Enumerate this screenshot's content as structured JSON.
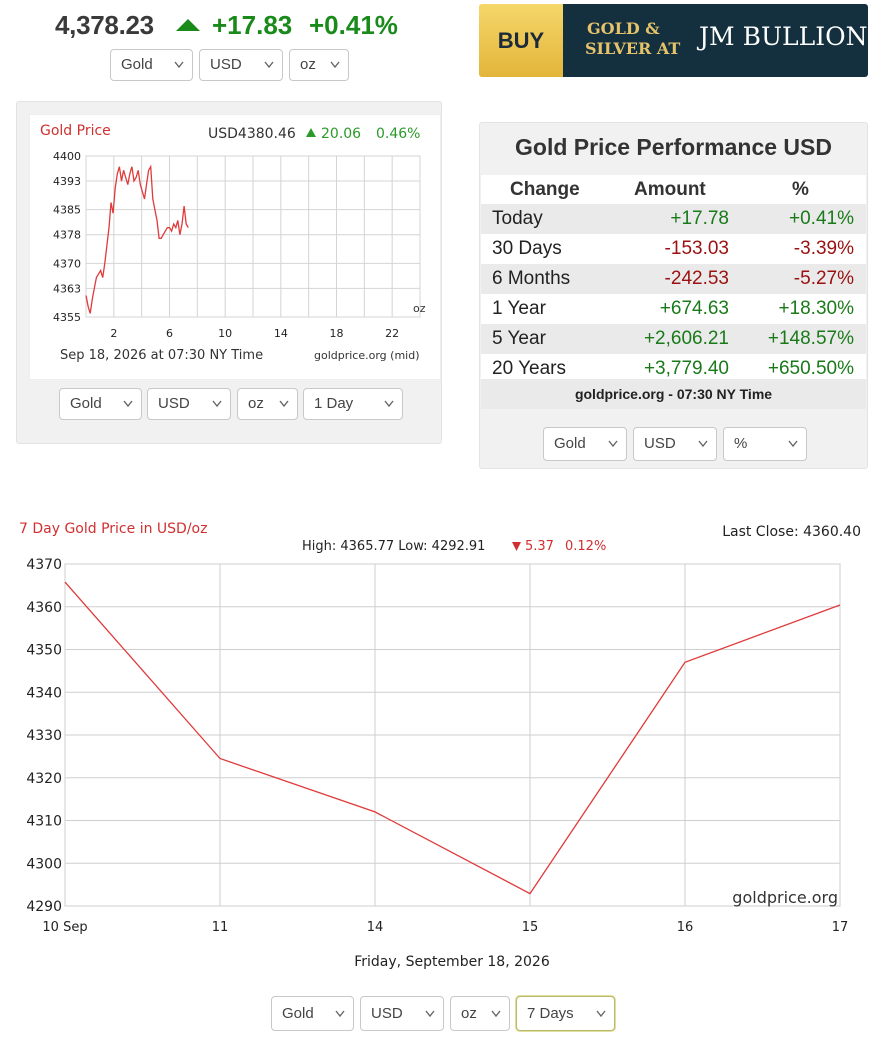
{
  "header": {
    "price": "4,378.23",
    "change": "+17.83",
    "change_pct": "+0.41%",
    "trend_icon": "triangle-up-icon",
    "selects": [
      "Gold",
      "USD",
      "oz"
    ]
  },
  "banner": {
    "buy": "BUY",
    "line1": "GOLD &",
    "line2": "SILVER AT",
    "brand": "JM BULLION"
  },
  "small_chart": {
    "title": "Gold Price",
    "price_label": "USD4380.46",
    "change_label": "20.06",
    "pct_label": "0.46%",
    "unit": "oz",
    "date_label": "Sep 18, 2026 at 07:30 NY Time",
    "source_label": "goldprice.org (mid)",
    "selects": [
      "Gold",
      "USD",
      "oz",
      "1 Day"
    ]
  },
  "performance": {
    "title": "Gold Price Performance USD",
    "headers": [
      "Change",
      "Amount",
      "%"
    ],
    "rows": [
      {
        "label": "Today",
        "amount": "+17.78",
        "pct": "+0.41%"
      },
      {
        "label": "30 Days",
        "amount": "-153.03",
        "pct": "-3.39%"
      },
      {
        "label": "6 Months",
        "amount": "-242.53",
        "pct": "-5.27%"
      },
      {
        "label": "1 Year",
        "amount": "+674.63",
        "pct": "+18.30%"
      },
      {
        "label": "5 Year",
        "amount": "+2,606.21",
        "pct": "+148.57%"
      },
      {
        "label": "20 Years",
        "amount": "+3,779.40",
        "pct": "+650.50%"
      }
    ],
    "footer": "goldprice.org - 07:30 NY Time",
    "selects": [
      "Gold",
      "USD",
      "%"
    ]
  },
  "big_chart": {
    "title": "7 Day Gold Price in USD/oz",
    "last_close": "Last Close: 4360.40",
    "high_low": "High: 4365.77 Low: 4292.91",
    "change": "5.37",
    "change_pct": "0.12%",
    "watermark": "goldprice.org",
    "date_label": "Friday, September 18, 2026",
    "selects": [
      "Gold",
      "USD",
      "oz",
      "7 Days"
    ]
  },
  "colors": {
    "up": "#1a8a1a",
    "down": "#9b1010",
    "chart_line": "#e03a3a",
    "banner_gold": "#e6c36a",
    "banner_dark": "#14303f"
  },
  "chart_data": [
    {
      "type": "line",
      "title": "Gold Price",
      "ylim": [
        4355,
        4400
      ],
      "yticks": [
        4355,
        4363,
        4370,
        4378,
        4385,
        4393,
        4400
      ],
      "xlim": [
        0,
        24
      ],
      "xticks": [
        2,
        6,
        10,
        14,
        18,
        22
      ],
      "grid": true,
      "series": [
        {
          "x": [
            0.0,
            0.15,
            0.3,
            0.45,
            0.6,
            0.75,
            0.9,
            1.05,
            1.2,
            1.35,
            1.5,
            1.65,
            1.8,
            1.95,
            2.1,
            2.25,
            2.4,
            2.55,
            2.7,
            2.85,
            3.0,
            3.15,
            3.3,
            3.45,
            3.6,
            3.75,
            3.9,
            4.05,
            4.2,
            4.35,
            4.5,
            4.65,
            4.8,
            4.95,
            5.1,
            5.25,
            5.4,
            5.55,
            5.7,
            5.85,
            6.0,
            6.15,
            6.3,
            6.45,
            6.6,
            6.75,
            6.9,
            7.05,
            7.2,
            7.35
          ],
          "y": [
            4361,
            4358,
            4356,
            4360,
            4363,
            4366,
            4367,
            4368,
            4366,
            4370,
            4375,
            4380,
            4387,
            4384,
            4391,
            4395,
            4397,
            4393,
            4396,
            4394,
            4392,
            4395,
            4397,
            4393,
            4394,
            4396,
            4392,
            4390,
            4388,
            4392,
            4396,
            4397,
            4388,
            4385,
            4382,
            4377,
            4377,
            4378,
            4379,
            4380,
            4380,
            4379,
            4381,
            4380,
            4382,
            4378,
            4381,
            4386,
            4381,
            4380
          ]
        }
      ]
    },
    {
      "type": "line",
      "title": "7 Day Gold Price in USD/oz",
      "categories": [
        "10 Sep",
        "11",
        "14",
        "15",
        "16",
        "17"
      ],
      "ylim": [
        4290,
        4370
      ],
      "yticks": [
        4290,
        4300,
        4310,
        4320,
        4330,
        4340,
        4350,
        4360,
        4370
      ],
      "grid": true,
      "series": [
        {
          "values": [
            4365.77,
            4324.5,
            4312,
            4292.91,
            4347,
            4360.4
          ]
        }
      ]
    }
  ]
}
